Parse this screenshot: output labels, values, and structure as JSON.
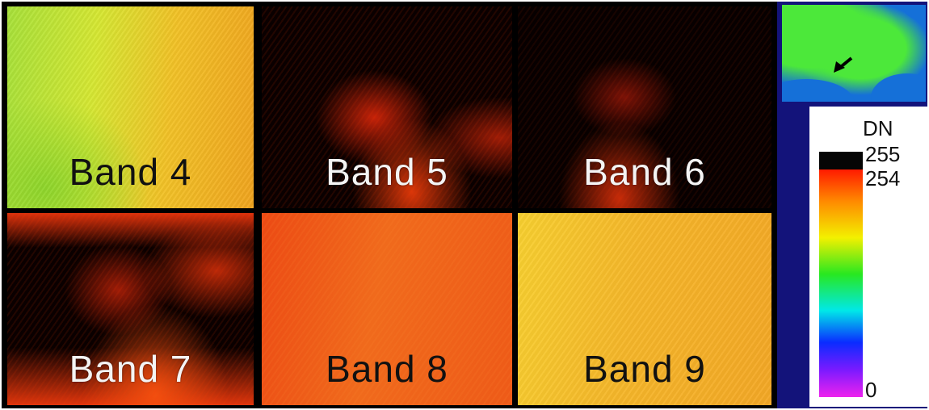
{
  "panels": [
    {
      "id": "b4",
      "label": "Band 4",
      "tone": "dark"
    },
    {
      "id": "b5",
      "label": "Band 5",
      "tone": "light"
    },
    {
      "id": "b6",
      "label": "Band 6",
      "tone": "light"
    },
    {
      "id": "b7",
      "label": "Band 7",
      "tone": "light"
    },
    {
      "id": "b8",
      "label": "Band 8",
      "tone": "dark"
    },
    {
      "id": "b9",
      "label": "Band 9",
      "tone": "dark"
    }
  ],
  "legend": {
    "title": "DN",
    "max_label": "255",
    "high_label": "254",
    "min_label": "0",
    "colors": {
      "saturated": "#050505",
      "high": "#ff1a00",
      "low": "#ee22ee"
    }
  },
  "locator_map": {
    "land_color": "#4ce83a",
    "water_color": "#1570d8",
    "marker": "arrow-icon"
  }
}
